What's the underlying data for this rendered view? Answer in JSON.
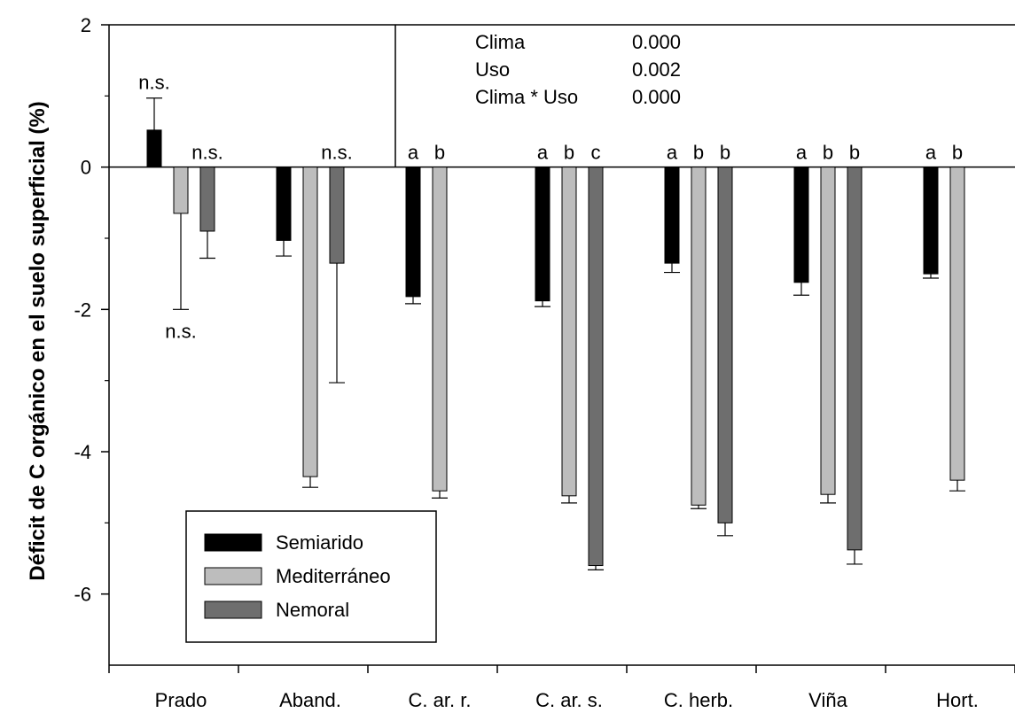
{
  "chart_data": {
    "type": "bar",
    "ylabel": "Déficit de C orgánico en el suelo superficial (%)",
    "xlabel": "",
    "ylim": [
      -7,
      2
    ],
    "yticks": [
      2,
      0,
      -2,
      -4,
      -6
    ],
    "yticklabels": [
      "2",
      "0",
      "-2",
      "-4",
      "-6"
    ],
    "categories": [
      "Prado",
      "Aband.",
      "C. ar. r.",
      "C. ar. s.",
      "C. herb.",
      "Viña",
      "Hort."
    ],
    "series": [
      {
        "name": "Semiarido",
        "color": "#000000",
        "values": [
          0.52,
          -1.03,
          -1.82,
          -1.88,
          -1.35,
          -1.62,
          -1.5
        ],
        "errors": [
          0.45,
          0.22,
          0.1,
          0.08,
          0.13,
          0.18,
          0.06
        ]
      },
      {
        "name": "Mediterráneo",
        "color": "#bdbdbd",
        "values": [
          -0.65,
          -4.35,
          -4.55,
          -4.62,
          -4.75,
          -4.6,
          -4.4
        ],
        "errors": [
          1.35,
          0.15,
          0.1,
          0.1,
          0.05,
          0.12,
          0.15
        ]
      },
      {
        "name": "Nemoral",
        "color": "#6e6e6e",
        "values": [
          -0.9,
          -1.35,
          null,
          -5.6,
          -5.0,
          -5.38,
          null
        ],
        "errors": [
          0.38,
          1.68,
          null,
          0.06,
          0.18,
          0.2,
          null
        ]
      }
    ],
    "significance": [
      {
        "category": "Prado",
        "series": "Semiarido",
        "text": "n.s.",
        "position": "above"
      },
      {
        "category": "Prado",
        "series": "Nemoral",
        "text": "n.s.",
        "position": "above"
      },
      {
        "category": "Prado",
        "series": "Mediterráneo",
        "text": "n.s.",
        "position": "below-error"
      },
      {
        "category": "Aband.",
        "series": "Nemoral",
        "text": "n.s.",
        "position": "above"
      },
      {
        "category": "C. ar. r.",
        "series": "Semiarido",
        "text": "a",
        "position": "above"
      },
      {
        "category": "C. ar. r.",
        "series": "Mediterráneo",
        "text": "b",
        "position": "above"
      },
      {
        "category": "C. ar. s.",
        "series": "Semiarido",
        "text": "a",
        "position": "above"
      },
      {
        "category": "C. ar. s.",
        "series": "Mediterráneo",
        "text": "b",
        "position": "above"
      },
      {
        "category": "C. ar. s.",
        "series": "Nemoral",
        "text": "c",
        "position": "above"
      },
      {
        "category": "C. herb.",
        "series": "Semiarido",
        "text": "a",
        "position": "above"
      },
      {
        "category": "C. herb.",
        "series": "Mediterráneo",
        "text": "b",
        "position": "above"
      },
      {
        "category": "C. herb.",
        "series": "Nemoral",
        "text": "b",
        "position": "above"
      },
      {
        "category": "Viña",
        "series": "Semiarido",
        "text": "a",
        "position": "above"
      },
      {
        "category": "Viña",
        "series": "Mediterráneo",
        "text": "b",
        "position": "above"
      },
      {
        "category": "Viña",
        "series": "Nemoral",
        "text": "b",
        "position": "above"
      },
      {
        "category": "Hort.",
        "series": "Semiarido",
        "text": "a",
        "position": "above"
      },
      {
        "category": "Hort.",
        "series": "Mediterráneo",
        "text": "b",
        "position": "above"
      }
    ],
    "stats": [
      {
        "term": "Clima",
        "p": "0.000"
      },
      {
        "term": "Uso",
        "p": "0.002"
      },
      {
        "term": "Clima * Uso",
        "p": "0.000"
      }
    ],
    "legend_placement": "bottom-left",
    "grid": false
  }
}
